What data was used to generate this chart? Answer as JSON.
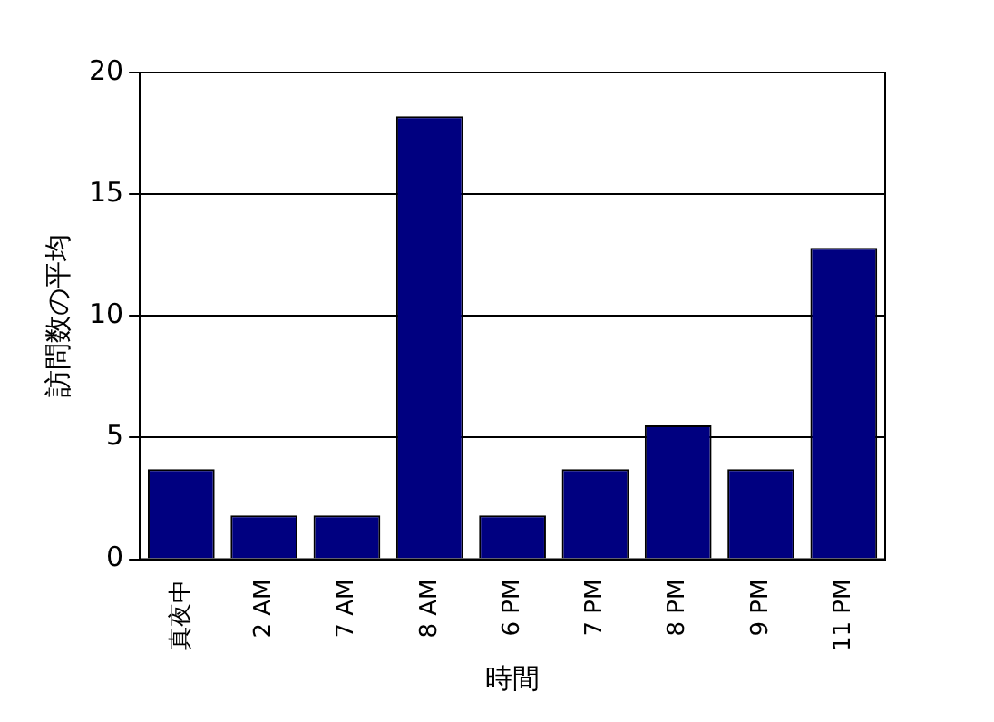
{
  "chart_data": {
    "type": "bar",
    "xlabel": "時間",
    "ylabel": "訪問数の平均",
    "categories": [
      "真夜中",
      "2 AM",
      "7 AM",
      "8 AM",
      "6 PM",
      "7 PM",
      "8 PM",
      "9 PM",
      "11 PM"
    ],
    "values": [
      3.7,
      1.8,
      1.8,
      18.2,
      1.8,
      3.7,
      5.5,
      3.7,
      12.8
    ],
    "color": "#000080",
    "ylim": [
      0,
      20
    ],
    "yticks": [
      0,
      5,
      10,
      15,
      20
    ],
    "grid": "y",
    "legend": false
  }
}
